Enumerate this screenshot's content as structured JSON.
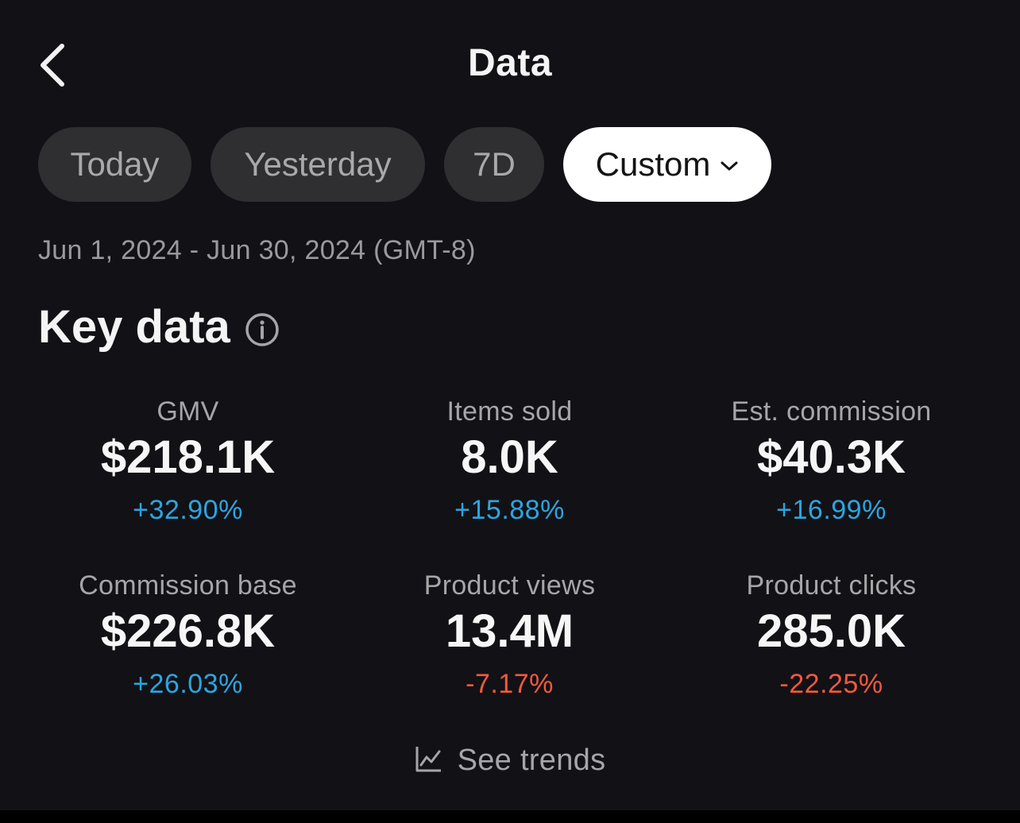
{
  "header": {
    "back_icon": "chevron-left-icon",
    "title": "Data"
  },
  "tabs": [
    {
      "label": "Today",
      "selected": false
    },
    {
      "label": "Yesterday",
      "selected": false
    },
    {
      "label": "7D",
      "selected": false
    },
    {
      "label": "Custom",
      "selected": true,
      "icon": "chevron-down-icon"
    }
  ],
  "date_range": "Jun 1, 2024 - Jun 30, 2024 (GMT-8)",
  "key_data": {
    "title": "Key data",
    "info_icon": "info-icon",
    "metrics": [
      {
        "label": "GMV",
        "value": "$218.1K",
        "change": "+32.90%",
        "trend": "up"
      },
      {
        "label": "Items sold",
        "value": "8.0K",
        "change": "+15.88%",
        "trend": "up"
      },
      {
        "label": "Est. commission",
        "value": "$40.3K",
        "change": "+16.99%",
        "trend": "up"
      },
      {
        "label": "Commission base",
        "value": "$226.8K",
        "change": "+26.03%",
        "trend": "up"
      },
      {
        "label": "Product views",
        "value": "13.4M",
        "change": "-7.17%",
        "trend": "down"
      },
      {
        "label": "Product clicks",
        "value": "285.0K",
        "change": "-22.25%",
        "trend": "down"
      }
    ]
  },
  "see_trends": {
    "label": "See trends",
    "icon": "line-chart-icon"
  },
  "colors": {
    "background": "#121116",
    "positive": "#2ba6e0",
    "negative": "#f25a3c",
    "selected_tab": "#ffffff",
    "tab": "#2f2f32"
  }
}
